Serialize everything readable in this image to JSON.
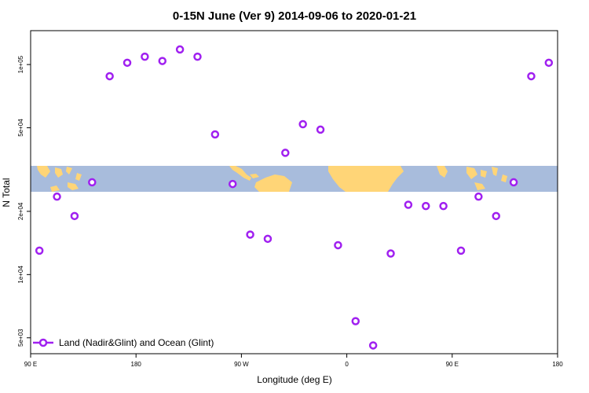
{
  "chart_data": {
    "type": "scatter",
    "title": "0-15N June (Ver 9)   2014-09-06 to 2020-01-21",
    "xlabel": "Longitude (deg E)",
    "ylabel": "N Total",
    "y_scale": "log",
    "xlim": [
      90,
      540
    ],
    "ylim": [
      4200,
      145000
    ],
    "x_ticks": [
      {
        "value": 90,
        "label": "90 E"
      },
      {
        "value": 180,
        "label": "180"
      },
      {
        "value": 270,
        "label": "90 W"
      },
      {
        "value": 360,
        "label": "0"
      },
      {
        "value": 450,
        "label": "90 E"
      },
      {
        "value": 540,
        "label": "180"
      }
    ],
    "y_ticks": [
      {
        "value": 5000,
        "label": "5e+03"
      },
      {
        "value": 10000,
        "label": "1e+04"
      },
      {
        "value": 20000,
        "label": "2e+04"
      },
      {
        "value": 50000,
        "label": "5e+04"
      },
      {
        "value": 100000,
        "label": "1e+05"
      }
    ],
    "series": [
      {
        "name": "Land (Nadir&Glint) and Ocean (Glint)",
        "color": "#a020f0",
        "points": [
          {
            "x": 97.5,
            "y": 13000
          },
          {
            "x": 112.5,
            "y": 23500
          },
          {
            "x": 127.5,
            "y": 19000
          },
          {
            "x": 142.5,
            "y": 27500
          },
          {
            "x": 157.5,
            "y": 88000
          },
          {
            "x": 172.5,
            "y": 102000
          },
          {
            "x": 187.5,
            "y": 109000
          },
          {
            "x": 202.5,
            "y": 104000
          },
          {
            "x": 217.5,
            "y": 118000
          },
          {
            "x": 232.5,
            "y": 109000
          },
          {
            "x": 247.5,
            "y": 46500
          },
          {
            "x": 262.5,
            "y": 27000
          },
          {
            "x": 277.5,
            "y": 15500
          },
          {
            "x": 292.5,
            "y": 14800
          },
          {
            "x": 307.5,
            "y": 38000
          },
          {
            "x": 322.5,
            "y": 52000
          },
          {
            "x": 337.5,
            "y": 49000
          },
          {
            "x": 352.5,
            "y": 13800
          },
          {
            "x": 367.5,
            "y": 6000
          },
          {
            "x": 382.5,
            "y": 4600
          },
          {
            "x": 397.5,
            "y": 12600
          },
          {
            "x": 412.5,
            "y": 21500
          },
          {
            "x": 427.5,
            "y": 21200
          },
          {
            "x": 442.5,
            "y": 21200
          },
          {
            "x": 457.5,
            "y": 13000
          },
          {
            "x": 472.5,
            "y": 23500
          },
          {
            "x": 487.5,
            "y": 19000
          },
          {
            "x": 502.5,
            "y": 27500
          },
          {
            "x": 517.5,
            "y": 88000
          },
          {
            "x": 532.5,
            "y": 102000
          }
        ]
      }
    ],
    "legend_position": "bottom-left",
    "grid": false,
    "background_map": {
      "ocean_color": "#a8bcdc",
      "land_color": "#ffd577"
    }
  }
}
